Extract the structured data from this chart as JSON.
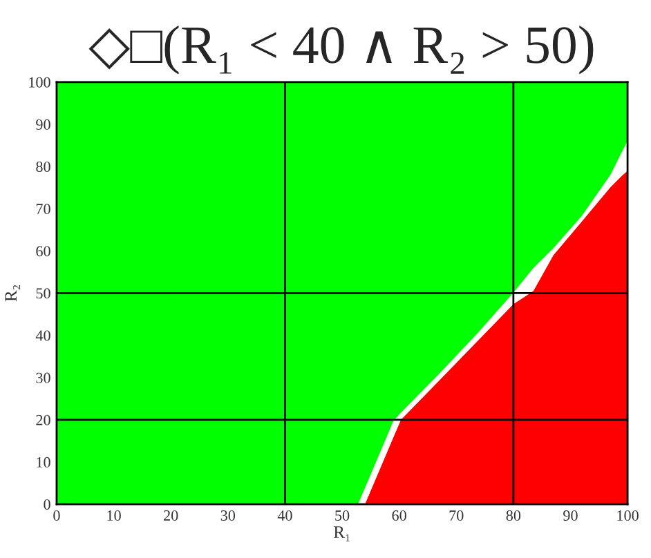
{
  "chart_data": {
    "type": "area",
    "title": "◇□(R₁ < 40 ∧ R₂ > 50)",
    "xlabel": "R₁",
    "ylabel": "R₂",
    "x": [
      0,
      52.8,
      54,
      59,
      60.3,
      67,
      73.6,
      80,
      83.5,
      87,
      92,
      97,
      99,
      100
    ],
    "stacked": true,
    "series": [
      {
        "color": "#ff0000",
        "values": [
          0,
          0,
          0,
          15.9,
          20,
          29.3,
          38.5,
          47.4,
          50.5,
          59,
          67,
          75.1,
          77.8,
          79
        ]
      },
      {
        "color": "#ffffff",
        "values": [
          0,
          0,
          3.8,
          3.8,
          1.7,
          1.6,
          1.8,
          2.7,
          5.4,
          1.6,
          1.3,
          2.9,
          5.6,
          7
        ]
      },
      {
        "color": "#00ff00",
        "values": [
          100,
          100,
          96.2,
          80.3,
          78.3,
          69.1,
          59.7,
          49.9,
          44.1,
          39.4,
          31.7,
          22,
          16.6,
          14
        ]
      }
    ],
    "xlim": [
      0,
      100
    ],
    "ylim": [
      0,
      100
    ],
    "xticks": [
      0,
      10,
      20,
      30,
      40,
      50,
      60,
      70,
      80,
      90,
      100
    ],
    "yticks": [
      0,
      10,
      20,
      30,
      40,
      50,
      60,
      70,
      80,
      90,
      100
    ],
    "ref_lines": [
      {
        "axis": "x",
        "value": 40,
        "color": "#000000"
      },
      {
        "axis": "x",
        "value": 80,
        "color": "#000000"
      },
      {
        "axis": "y",
        "value": 20,
        "color": "#000000"
      },
      {
        "axis": "y",
        "value": 50,
        "color": "#000000"
      }
    ]
  }
}
